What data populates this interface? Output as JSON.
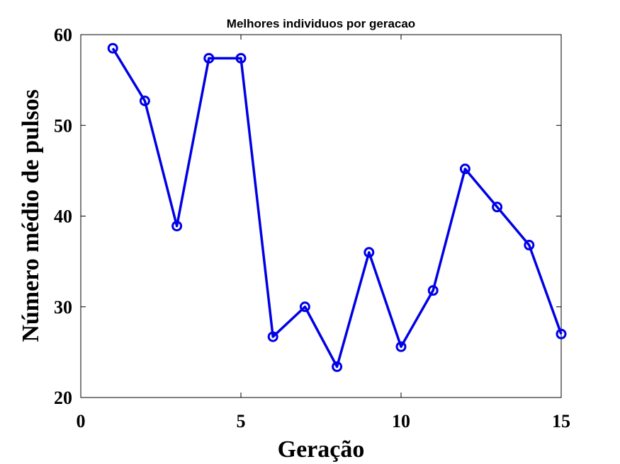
{
  "chart_data": {
    "type": "line",
    "title": "Melhores individuos por geracao",
    "xlabel": "Geração",
    "ylabel": "Número médio de pulsos",
    "xlim": [
      0,
      15
    ],
    "ylim": [
      20,
      60
    ],
    "xticks": [
      0,
      5,
      10,
      15
    ],
    "yticks": [
      20,
      30,
      40,
      50,
      60
    ],
    "grid": false,
    "color": "#0000e6",
    "marker": "circle-open",
    "series": [
      {
        "x": [
          1,
          2,
          3,
          4,
          5,
          6,
          7,
          8,
          9,
          10,
          11,
          12,
          13,
          14,
          15
        ],
        "values": [
          58.5,
          52.7,
          38.9,
          57.4,
          57.4,
          26.7,
          30.0,
          23.4,
          36.0,
          25.6,
          31.8,
          45.2,
          41.0,
          36.8,
          27.0
        ]
      }
    ]
  }
}
